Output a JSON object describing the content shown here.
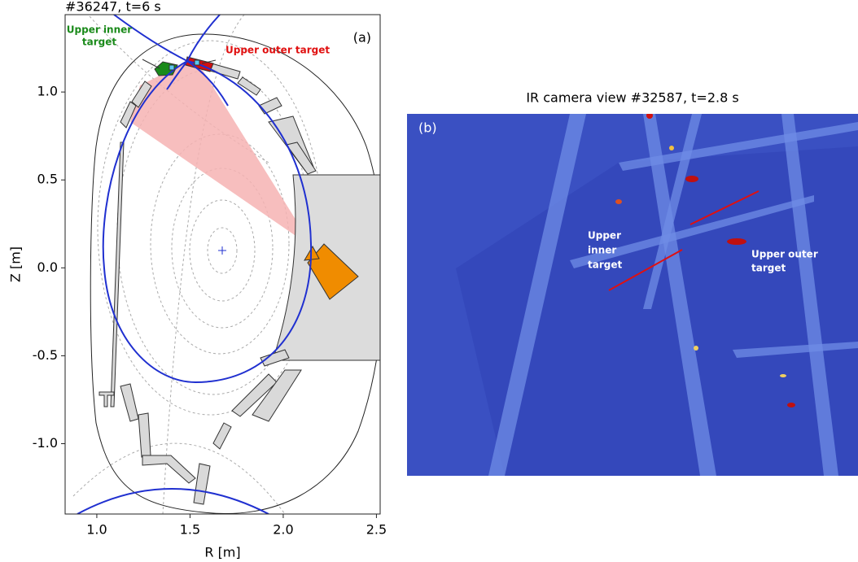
{
  "chart_data": [
    {
      "type": "poloidal",
      "title": "#36247, t=6 s",
      "panel_label": "(a)",
      "xlabel": "R [m]",
      "ylabel": "Z [m]",
      "xlim": [
        0.83,
        2.52
      ],
      "ylim": [
        -1.4,
        1.44
      ],
      "xticks": [
        {
          "value": 1,
          "label": "1.0"
        },
        1.5,
        {
          "value": 2,
          "label": "2.0"
        },
        2.5
      ],
      "yticks": [
        {
          "value": -1,
          "label": "-1.0"
        },
        -0.5,
        {
          "value": 0,
          "label": "0.0"
        },
        0.5,
        {
          "value": 1,
          "label": "1.0"
        }
      ],
      "annotations": [
        {
          "text": [
            "Upper inner",
            "target"
          ],
          "color": "#1a8a1a"
        },
        {
          "text": [
            "Upper outer target"
          ],
          "color": "#e01010"
        }
      ]
    },
    {
      "type": "image",
      "title": "IR camera view  #32587, t=2.8 s",
      "panel_label": "(b)",
      "annotations": [
        {
          "text": [
            "Upper",
            "inner",
            "target"
          ],
          "color": "#ffffff"
        },
        {
          "text": [
            "Upper outer",
            "target"
          ],
          "color": "#ffffff"
        }
      ]
    }
  ]
}
